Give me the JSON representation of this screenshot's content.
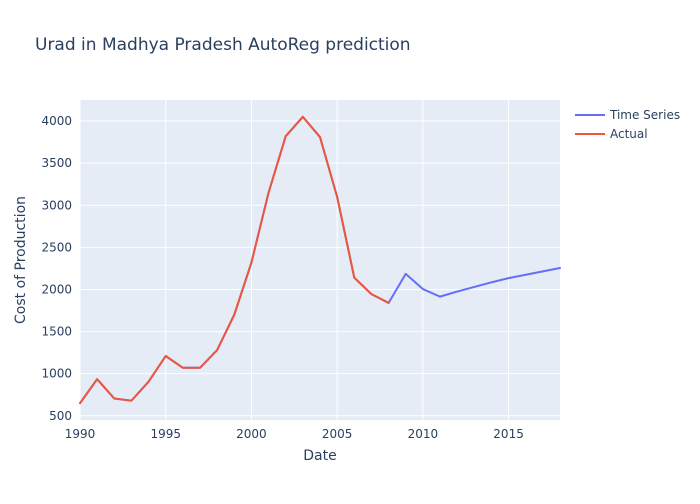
{
  "chart_data": {
    "type": "line",
    "title": "Urad in Madhya Pradesh AutoReg prediction",
    "xlabel": "Date",
    "ylabel": "Cost of Production",
    "xlim": [
      1990,
      2018
    ],
    "ylim": [
      450,
      4250
    ],
    "x_ticks": [
      1990,
      1995,
      2000,
      2005,
      2010,
      2015
    ],
    "y_ticks": [
      500,
      1000,
      1500,
      2000,
      2500,
      3000,
      3500,
      4000
    ],
    "grid": true,
    "legend_position": "top-right",
    "colors": {
      "plot_bg": "#e5ecf6",
      "grid": "#ffffff",
      "text": "#2a3f5f"
    },
    "series": [
      {
        "name": "Time Series",
        "color": "#636efa",
        "x": [
          1990,
          1991,
          1992,
          1993,
          1994,
          1995,
          1996,
          1997,
          1998,
          1999,
          2000,
          2001,
          2002,
          2003,
          2004,
          2005,
          2006,
          2007,
          2008,
          2009,
          2010,
          2011,
          2012,
          2013,
          2014,
          2015,
          2016,
          2017,
          2018
        ],
        "y": [
          650,
          935,
          705,
          680,
          905,
          1210,
          1070,
          1070,
          1280,
          1700,
          2320,
          3150,
          3820,
          4050,
          3810,
          3100,
          2140,
          1945,
          1840,
          2185,
          2005,
          1915,
          1975,
          2030,
          2085,
          2135,
          2175,
          2215,
          2255
        ]
      },
      {
        "name": "Actual",
        "color": "#ef553b",
        "x": [
          1990,
          1991,
          1992,
          1993,
          1994,
          1995,
          1996,
          1997,
          1998,
          1999,
          2000,
          2001,
          2002,
          2003,
          2004,
          2005,
          2006,
          2007,
          2008
        ],
        "y": [
          650,
          935,
          705,
          680,
          905,
          1210,
          1070,
          1070,
          1280,
          1700,
          2320,
          3150,
          3820,
          4050,
          3810,
          3100,
          2140,
          1945,
          1840
        ]
      }
    ]
  }
}
